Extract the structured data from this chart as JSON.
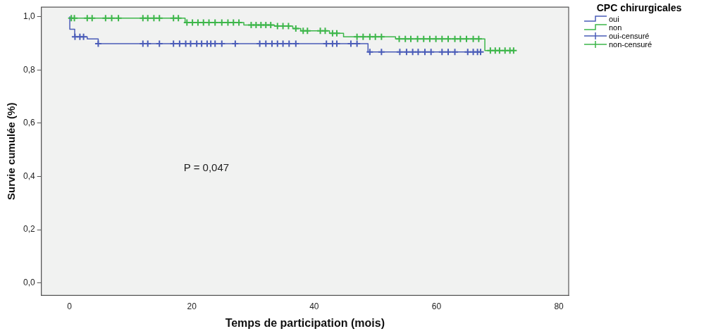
{
  "chart_data": {
    "type": "step",
    "xlabel": "Temps de participation (mois)",
    "ylabel": "Survie cumulée (%)",
    "legend_title": "CPC chirurgicales",
    "legend": "right",
    "grid": false,
    "xlim": [
      -4.6,
      81.6
    ],
    "xticks": [
      0,
      20,
      40,
      60,
      80
    ],
    "ylim": [
      -0.047,
      1.036
    ],
    "yticks": [
      {
        "value": 0,
        "label": "0,0"
      },
      {
        "value": 0.2,
        "label": "0,2"
      },
      {
        "value": 0.4,
        "label": "0,4"
      },
      {
        "value": 0.6,
        "label": "0,6"
      },
      {
        "value": 0.8,
        "label": "0,8"
      },
      {
        "value": 1,
        "label": "1,0"
      }
    ],
    "annotations": [
      "P = 0,047"
    ],
    "series": [
      {
        "name": "oui",
        "color": "#4a5cb8",
        "marker": "none",
        "x": [
          0,
          0.05,
          0.85,
          2.9,
          4.7,
          48.8,
          67.2
        ],
        "values": [
          1,
          0.953,
          0.925,
          0.917,
          0.899,
          0.868,
          0.868
        ]
      },
      {
        "name": "non",
        "color": "#3db64a",
        "marker": "none",
        "x": [
          0,
          18.9,
          28.5,
          33.5,
          36.5,
          37.8,
          42.5,
          44.8,
          53.3,
          67.9,
          72.7
        ],
        "values": [
          0.995,
          0.978,
          0.969,
          0.965,
          0.956,
          0.947,
          0.938,
          0.925,
          0.917,
          0.873,
          0.873
        ]
      },
      {
        "name": "oui-censuré",
        "type": "scatter",
        "color": "#4a5cb8",
        "marker": "cross",
        "x": [
          0.9,
          1.7,
          2.3,
          4.7,
          12.0,
          12.8,
          14.7,
          17.0,
          18.0,
          19.0,
          19.8,
          20.8,
          21.6,
          22.5,
          23.1,
          23.8,
          24.9,
          27.1,
          31.1,
          32.1,
          33.1,
          34.0,
          34.9,
          35.9,
          37.0,
          42.0,
          43.0,
          43.7,
          46.0,
          47.0,
          49.1,
          51.0,
          54.0,
          55.1,
          56.1,
          57.0,
          58.1,
          59.1,
          60.9,
          61.9,
          63.0,
          65.1,
          66.0,
          66.7,
          67.2
        ],
        "values": [
          0.925,
          0.925,
          0.925,
          0.899,
          0.899,
          0.899,
          0.899,
          0.899,
          0.899,
          0.899,
          0.899,
          0.899,
          0.899,
          0.899,
          0.899,
          0.899,
          0.899,
          0.899,
          0.899,
          0.899,
          0.899,
          0.899,
          0.899,
          0.899,
          0.899,
          0.899,
          0.899,
          0.899,
          0.899,
          0.899,
          0.868,
          0.868,
          0.868,
          0.868,
          0.868,
          0.868,
          0.868,
          0.868,
          0.868,
          0.868,
          0.868,
          0.868,
          0.868,
          0.868,
          0.868
        ]
      },
      {
        "name": "non-censuré",
        "type": "scatter",
        "color": "#3db64a",
        "marker": "cross",
        "x": [
          0.3,
          0.8,
          2.9,
          3.7,
          5.9,
          6.9,
          8.0,
          12.0,
          12.8,
          13.8,
          14.7,
          17.0,
          17.8,
          19.2,
          20.1,
          21.0,
          21.9,
          22.8,
          23.8,
          24.9,
          25.9,
          26.8,
          27.7,
          29.7,
          30.5,
          31.3,
          32.1,
          32.9,
          34.0,
          34.9,
          35.8,
          37.0,
          38.2,
          38.9,
          41.0,
          41.8,
          43.0,
          43.7,
          47.0,
          48.0,
          49.1,
          50.0,
          51.0,
          53.9,
          54.9,
          55.8,
          56.9,
          57.9,
          58.9,
          59.9,
          60.9,
          61.9,
          63.0,
          63.9,
          64.9,
          66.0,
          66.9,
          68.8,
          69.6,
          70.3,
          71.2,
          72.0,
          72.6
        ],
        "values": [
          0.995,
          0.995,
          0.995,
          0.995,
          0.995,
          0.995,
          0.995,
          0.995,
          0.995,
          0.995,
          0.995,
          0.995,
          0.995,
          0.978,
          0.978,
          0.978,
          0.978,
          0.978,
          0.978,
          0.978,
          0.978,
          0.978,
          0.978,
          0.969,
          0.969,
          0.969,
          0.969,
          0.969,
          0.965,
          0.965,
          0.965,
          0.956,
          0.947,
          0.947,
          0.947,
          0.947,
          0.938,
          0.938,
          0.925,
          0.925,
          0.925,
          0.925,
          0.925,
          0.917,
          0.917,
          0.917,
          0.917,
          0.917,
          0.917,
          0.917,
          0.917,
          0.917,
          0.917,
          0.917,
          0.917,
          0.917,
          0.917,
          0.873,
          0.873,
          0.873,
          0.873,
          0.873,
          0.873
        ]
      }
    ]
  }
}
